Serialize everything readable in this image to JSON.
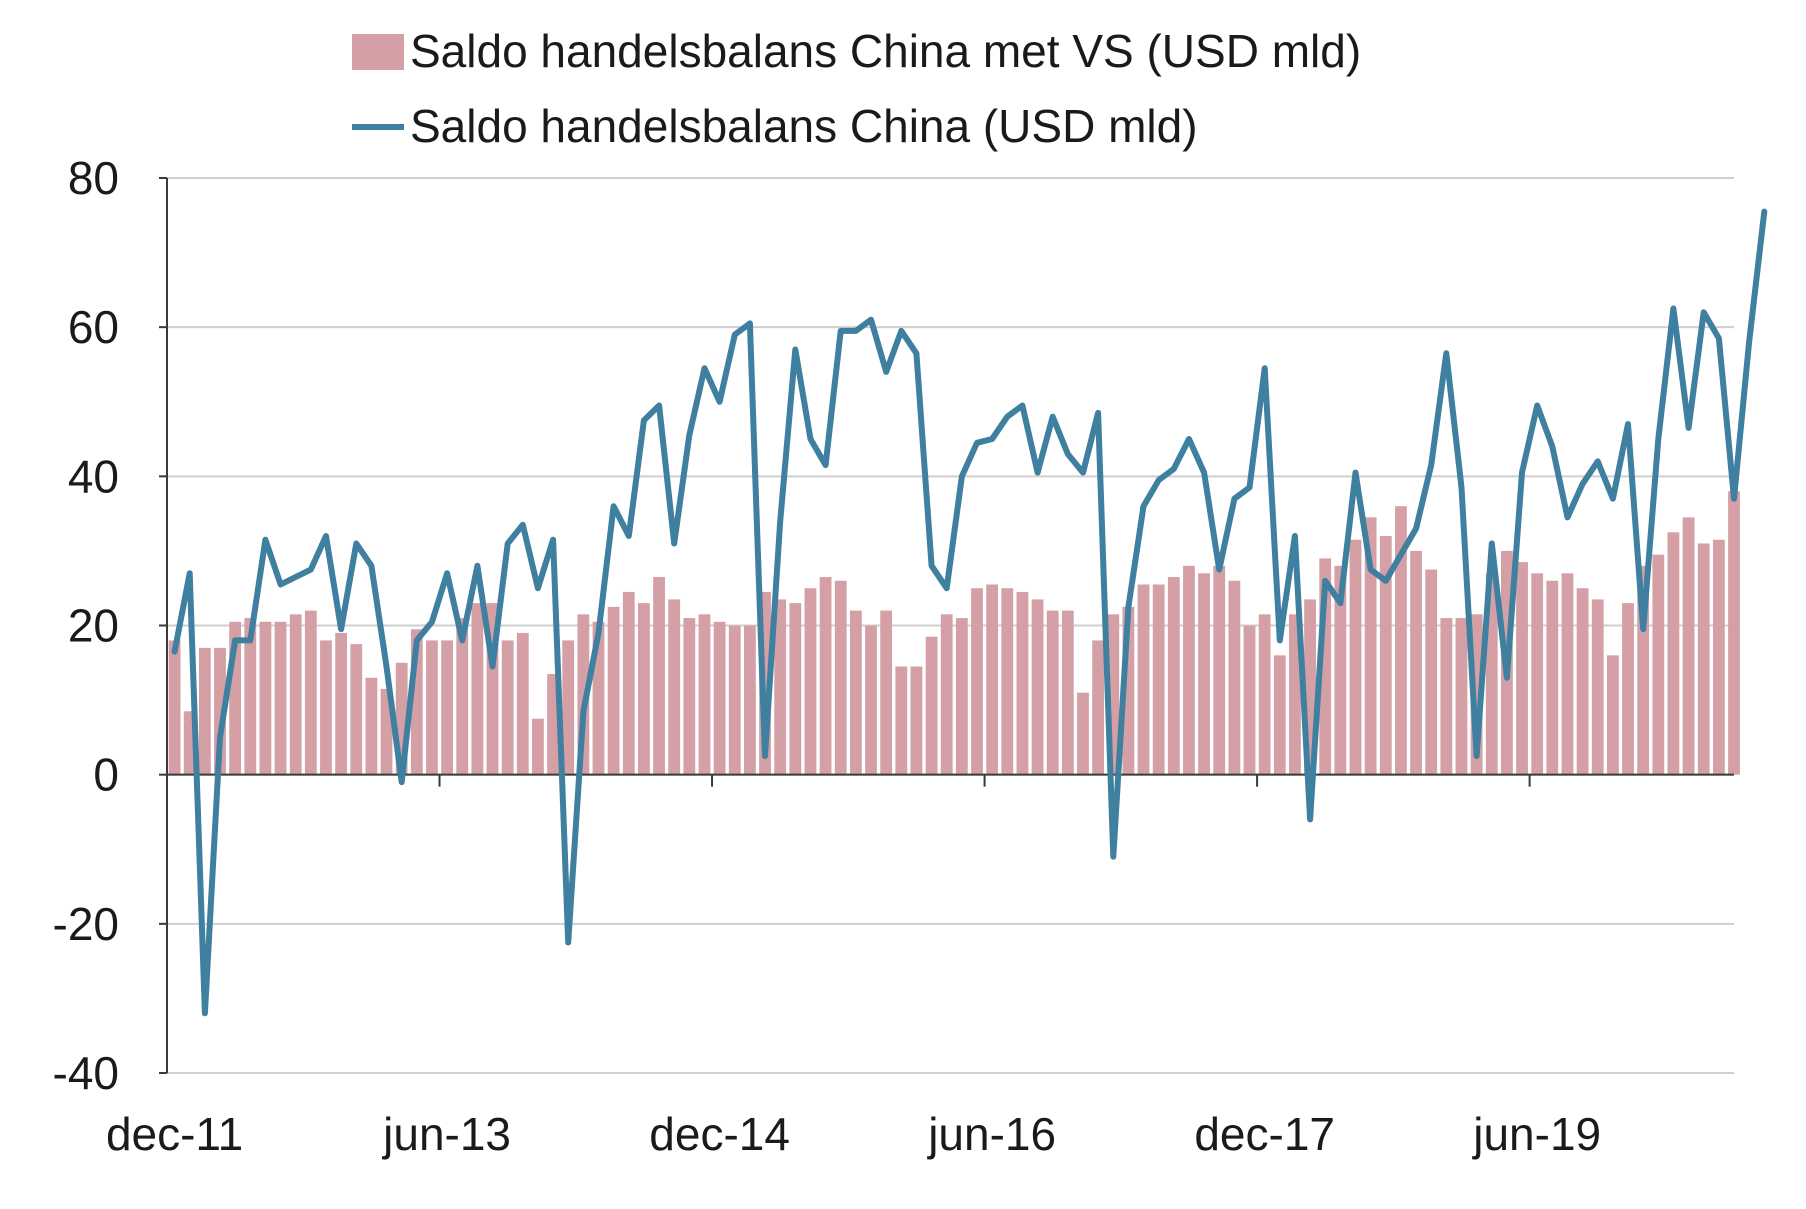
{
  "chart_data": {
    "type": "bar+line",
    "title": "",
    "xlabel": "",
    "ylabel": "",
    "ylim": [
      -40,
      80
    ],
    "yticks": [
      -40,
      -20,
      0,
      20,
      40,
      60,
      80
    ],
    "grid": "horizontal",
    "legend_position": "top-center",
    "x_tick_labels": [
      "dec-11",
      "jun-13",
      "dec-14",
      "jun-16",
      "dec-17",
      "jun-19"
    ],
    "x_tick_indices": [
      0,
      18,
      36,
      54,
      72,
      90
    ],
    "series": [
      {
        "name": "Saldo handelsbalans China met VS (USD mld)",
        "type": "bar",
        "color": "#d4a0a6",
        "values": [
          18,
          8.5,
          17,
          17,
          20.5,
          21,
          20.5,
          20.5,
          21.5,
          22,
          18,
          19,
          17.5,
          13,
          11.5,
          15,
          19.5,
          18,
          18,
          21,
          23,
          23,
          18,
          19,
          7.5,
          13.5,
          18,
          21.5,
          20.5,
          22.5,
          24.5,
          23,
          26.5,
          23.5,
          21,
          21.5,
          20.5,
          20,
          20,
          24.5,
          23.5,
          23,
          25,
          26.5,
          26,
          22,
          20,
          22,
          14.5,
          14.5,
          18.5,
          21.5,
          21,
          25,
          25.5,
          25,
          24.5,
          23.5,
          22,
          22,
          11,
          18,
          21.5,
          22.5,
          25.5,
          25.5,
          26.5,
          28,
          27,
          28,
          26,
          20,
          21.5,
          16,
          21.5,
          23.5,
          29,
          28,
          31.5,
          34.5,
          32,
          36,
          30,
          27.5,
          21,
          21,
          21.5,
          27,
          30,
          28.5,
          27,
          26,
          27,
          25,
          23.5,
          16,
          23,
          28,
          29.5,
          32.5,
          34.5,
          31,
          31.5,
          38
        ]
      },
      {
        "name": "Saldo handelsbalans China (USD mld)",
        "type": "line",
        "color": "#3f7f9f",
        "values": [
          16.5,
          27,
          -32,
          5,
          18,
          18,
          31.5,
          25.5,
          26.5,
          27.5,
          32,
          19.5,
          31,
          28,
          14.5,
          -1,
          18,
          20.5,
          27,
          18,
          28,
          14.5,
          31,
          33.5,
          25,
          31.5,
          -22.5,
          8.5,
          19,
          36,
          32,
          47.5,
          49.5,
          31,
          45.5,
          54.5,
          50,
          59,
          60.5,
          2.5,
          34,
          57,
          45,
          41.5,
          59.5,
          59.5,
          61,
          54,
          59.5,
          56.5,
          28,
          25,
          40,
          44.5,
          45,
          48,
          49.5,
          40.5,
          48,
          43,
          40.5,
          48.5,
          -11,
          22.5,
          36,
          39.5,
          41,
          45,
          40.5,
          27.5,
          37,
          38.5,
          54.5,
          18,
          32,
          -6,
          26,
          23,
          40.5,
          27.5,
          26,
          29.5,
          33,
          41.5,
          56.5,
          38.5,
          2.5,
          31,
          13,
          40.5,
          49.5,
          44,
          34.5,
          39,
          42,
          37,
          47,
          19.5,
          45,
          62.5,
          46.5,
          62,
          58.5,
          37,
          58,
          75.5
        ]
      }
    ]
  }
}
